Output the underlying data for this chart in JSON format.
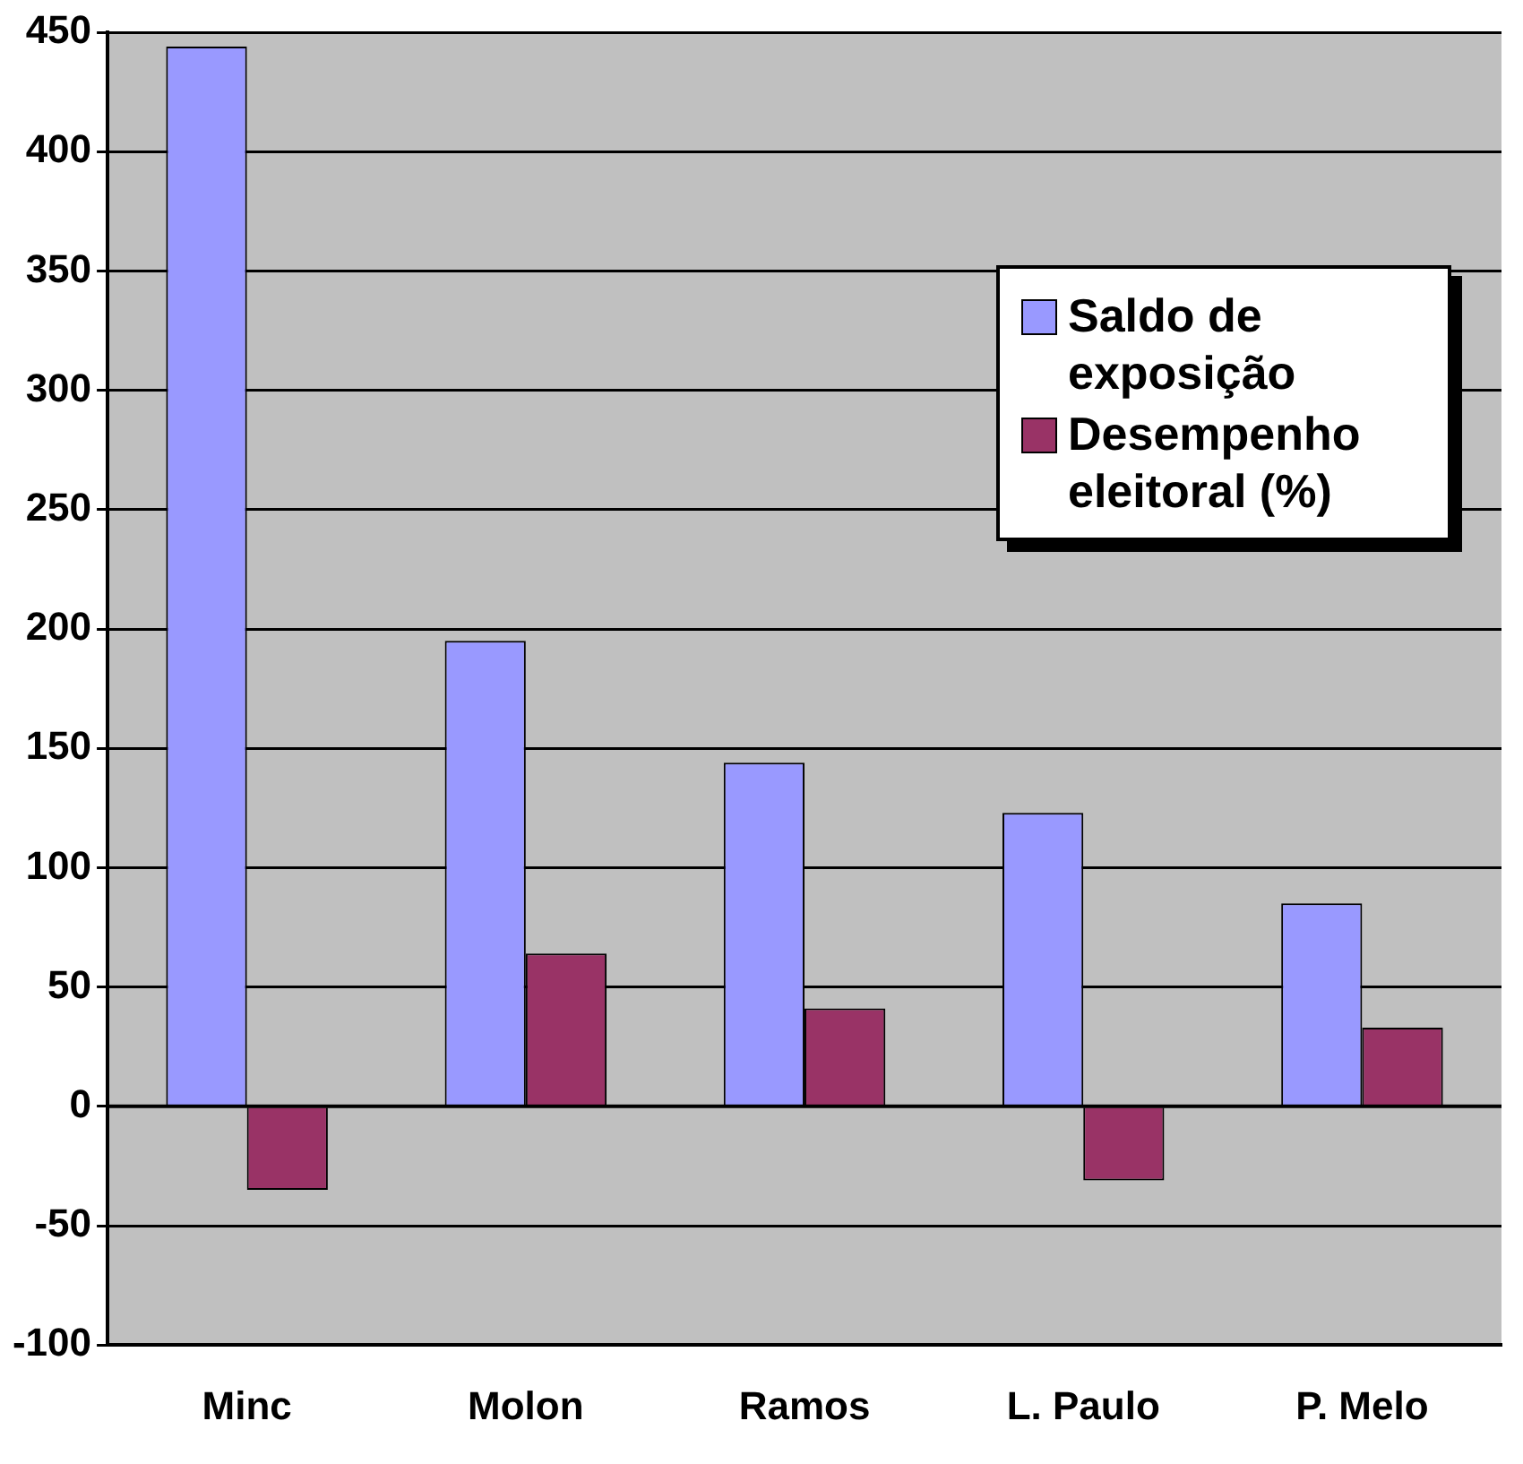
{
  "chart_data": {
    "type": "bar",
    "categories": [
      "Minc",
      "Molon",
      "Ramos",
      "L. Paulo",
      "P. Melo"
    ],
    "series": [
      {
        "name": "Saldo de exposição",
        "color": "#9999ff",
        "values": [
          444,
          195,
          144,
          123,
          85
        ]
      },
      {
        "name": "Desempenho eleitoral (%)",
        "color": "#993366",
        "values": [
          -35,
          64,
          41,
          -31,
          33
        ]
      }
    ],
    "ylim": [
      -100,
      450
    ],
    "yticks": [
      -100,
      -50,
      0,
      50,
      100,
      150,
      200,
      250,
      300,
      350,
      400,
      450
    ],
    "grid": "y",
    "legend": "top right"
  }
}
